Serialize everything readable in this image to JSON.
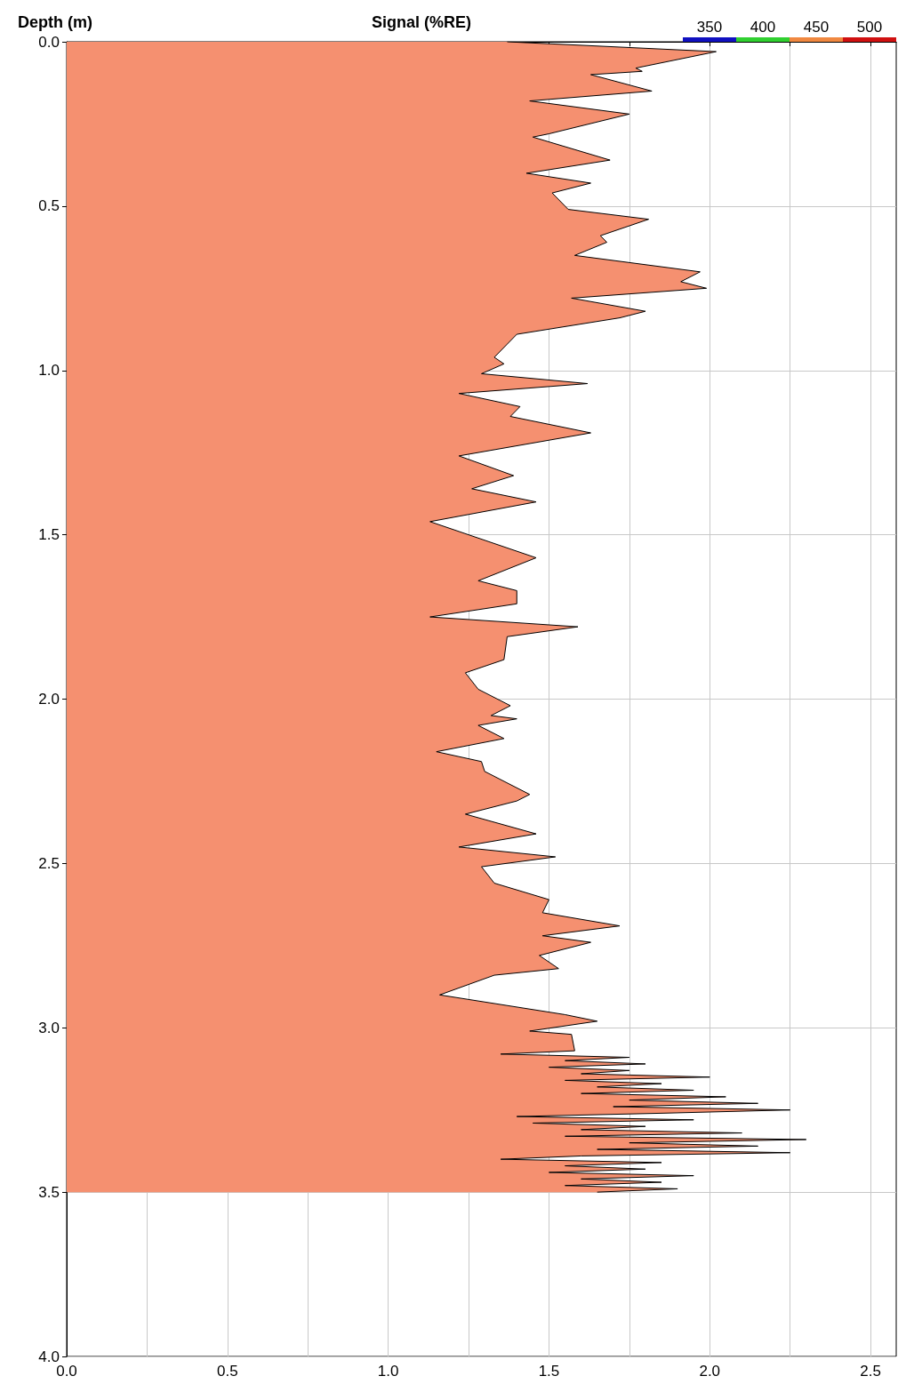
{
  "chart_data": {
    "type": "area",
    "orientation": "horizontal",
    "xlabel": "Signal (%RE)",
    "ylabel": "Depth (m)",
    "xlim": [
      0,
      2.58
    ],
    "xticks": [
      {
        "value": 0,
        "label": "0.0"
      },
      {
        "value": 0.25,
        "label": null
      },
      0.5,
      {
        "value": 0.75,
        "label": null
      },
      {
        "value": 1,
        "label": "1.0"
      },
      {
        "value": 1.25,
        "label": null
      },
      1.5,
      {
        "value": 1.75,
        "label": null
      },
      {
        "value": 2,
        "label": "2.0"
      },
      {
        "value": 2.25,
        "label": null
      },
      2.5
    ],
    "ylim": [
      4,
      0
    ],
    "yticks": [
      {
        "value": 0,
        "label": "0.0"
      },
      0.5,
      {
        "value": 1,
        "label": "1.0"
      },
      1.5,
      {
        "value": 2,
        "label": "2.0"
      },
      2.5,
      {
        "value": 3,
        "label": "3.0"
      },
      3.5,
      {
        "value": 4,
        "label": "4.0"
      }
    ],
    "grid": true,
    "clim": [
      325,
      525
    ],
    "cticks": [
      350,
      400,
      450,
      500
    ],
    "colors": [
      "#1010c0",
      "#30d030",
      "#f08840",
      "#d01010"
    ],
    "series": [
      {
        "color": "#f59070",
        "x": [
          0,
          0.03,
          0.08,
          0.09,
          0.1,
          0.15,
          0.18,
          0.22,
          0.28,
          0.29,
          0.36,
          0.4,
          0.43,
          0.46,
          0.51,
          0.54,
          0.59,
          0.61,
          0.65,
          0.7,
          0.73,
          0.75,
          0.78,
          0.82,
          0.84,
          0.89,
          0.92,
          0.96,
          0.98,
          1.01,
          1.04,
          1.07,
          1.11,
          1.14,
          1.19,
          1.26,
          1.32,
          1.36,
          1.4,
          1.46,
          1.57,
          1.64,
          1.67,
          1.71,
          1.75,
          1.78,
          1.81,
          1.88,
          1.92,
          1.97,
          2.02,
          2.05,
          2.06,
          2.08,
          2.12,
          2.16,
          2.19,
          2.22,
          2.29,
          2.31,
          2.35,
          2.41,
          2.45,
          2.48,
          2.51,
          2.56,
          2.61,
          2.65,
          2.69,
          2.72,
          2.74,
          2.78,
          2.82,
          2.84,
          2.9,
          2.96,
          2.98,
          3.01,
          3.02,
          3.07,
          3.08,
          3.09,
          3.1,
          3.11,
          3.12,
          3.13,
          3.14,
          3.15,
          3.16,
          3.17,
          3.18,
          3.19,
          3.2,
          3.21,
          3.22,
          3.23,
          3.24,
          3.25,
          3.26,
          3.27,
          3.28,
          3.29,
          3.3,
          3.31,
          3.32,
          3.33,
          3.34,
          3.35,
          3.36,
          3.37,
          3.38,
          3.39,
          3.4,
          3.41,
          3.42,
          3.43,
          3.44,
          3.45,
          3.46,
          3.47,
          3.48,
          3.49,
          3.5
        ],
        "values": [
          1.37,
          2.02,
          1.77,
          1.79,
          1.63,
          1.82,
          1.44,
          1.75,
          1.5,
          1.45,
          1.69,
          1.43,
          1.63,
          1.51,
          1.56,
          1.81,
          1.66,
          1.68,
          1.58,
          1.97,
          1.91,
          1.99,
          1.57,
          1.8,
          1.72,
          1.4,
          1.37,
          1.33,
          1.36,
          1.29,
          1.62,
          1.22,
          1.41,
          1.38,
          1.63,
          1.22,
          1.39,
          1.26,
          1.46,
          1.13,
          1.46,
          1.28,
          1.4,
          1.4,
          1.13,
          1.59,
          1.37,
          1.36,
          1.24,
          1.28,
          1.38,
          1.32,
          1.4,
          1.28,
          1.36,
          1.15,
          1.29,
          1.3,
          1.44,
          1.4,
          1.24,
          1.46,
          1.22,
          1.52,
          1.29,
          1.33,
          1.5,
          1.48,
          1.72,
          1.48,
          1.63,
          1.47,
          1.53,
          1.33,
          1.16,
          1.55,
          1.65,
          1.44,
          1.57,
          1.58,
          1.35,
          1.75,
          1.55,
          1.8,
          1.5,
          1.75,
          1.6,
          2.0,
          1.55,
          1.85,
          1.65,
          1.95,
          1.6,
          2.05,
          1.75,
          2.15,
          1.7,
          2.25,
          1.85,
          1.4,
          1.95,
          1.45,
          1.8,
          1.6,
          2.1,
          1.55,
          2.3,
          1.75,
          2.15,
          1.65,
          2.25,
          1.6,
          1.35,
          1.85,
          1.55,
          1.8,
          1.5,
          1.95,
          1.6,
          1.85,
          1.55,
          1.9,
          1.65
        ]
      }
    ]
  }
}
